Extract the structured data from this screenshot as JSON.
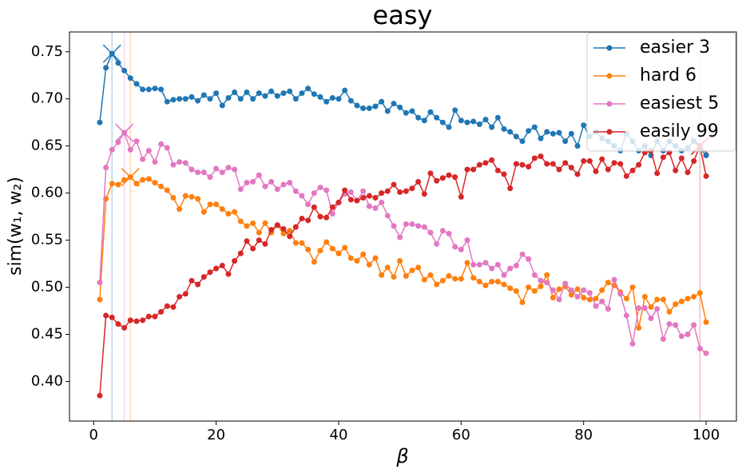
{
  "chart_data": {
    "type": "line",
    "title": "easy",
    "xlabel": "β",
    "ylabel": "sim(w₁, w₂)",
    "x": [
      1,
      2,
      3,
      4,
      5,
      6,
      7,
      8,
      9,
      10,
      11,
      12,
      13,
      14,
      15,
      16,
      17,
      18,
      19,
      20,
      21,
      22,
      23,
      24,
      25,
      26,
      27,
      28,
      29,
      30,
      31,
      32,
      33,
      34,
      35,
      36,
      37,
      38,
      39,
      40,
      41,
      42,
      43,
      44,
      45,
      46,
      47,
      48,
      49,
      50,
      51,
      52,
      53,
      54,
      55,
      56,
      57,
      58,
      59,
      60,
      61,
      62,
      63,
      64,
      65,
      66,
      67,
      68,
      69,
      70,
      71,
      72,
      73,
      74,
      75,
      76,
      77,
      78,
      79,
      80,
      81,
      82,
      83,
      84,
      85,
      86,
      87,
      88,
      89,
      90,
      91,
      92,
      93,
      94,
      95,
      96,
      97,
      98,
      99,
      100
    ],
    "series": [
      {
        "name": "easier 3",
        "color": "#1f77b4",
        "values": [
          0.675,
          0.733,
          0.748,
          0.738,
          0.73,
          0.722,
          0.716,
          0.71,
          0.71,
          0.711,
          0.71,
          0.697,
          0.699,
          0.7,
          0.7,
          0.702,
          0.698,
          0.704,
          0.7,
          0.706,
          0.693,
          0.701,
          0.707,
          0.7,
          0.707,
          0.7,
          0.706,
          0.703,
          0.708,
          0.703,
          0.706,
          0.708,
          0.7,
          0.706,
          0.711,
          0.705,
          0.702,
          0.697,
          0.701,
          0.7,
          0.709,
          0.698,
          0.693,
          0.69,
          0.69,
          0.692,
          0.697,
          0.687,
          0.695,
          0.691,
          0.685,
          0.687,
          0.68,
          0.677,
          0.686,
          0.68,
          0.675,
          0.67,
          0.688,
          0.677,
          0.675,
          0.676,
          0.673,
          0.678,
          0.67,
          0.68,
          0.668,
          0.665,
          0.66,
          0.655,
          0.666,
          0.67,
          0.658,
          0.665,
          0.663,
          0.664,
          0.655,
          0.663,
          0.65,
          0.672,
          0.66,
          0.665,
          0.658,
          0.655,
          0.65,
          0.645,
          0.663,
          0.655,
          0.645,
          0.65,
          0.64,
          0.655,
          0.645,
          0.655,
          0.65,
          0.645,
          0.648,
          0.655,
          0.648,
          0.64
        ]
      },
      {
        "name": "hard 6",
        "color": "#ff7f0e",
        "values": [
          0.487,
          0.594,
          0.61,
          0.609,
          0.614,
          0.617,
          0.61,
          0.614,
          0.615,
          0.611,
          0.607,
          0.603,
          0.595,
          0.583,
          0.597,
          0.596,
          0.594,
          0.58,
          0.588,
          0.588,
          0.583,
          0.578,
          0.58,
          0.57,
          0.565,
          0.568,
          0.558,
          0.568,
          0.558,
          0.566,
          0.557,
          0.56,
          0.547,
          0.547,
          0.54,
          0.527,
          0.539,
          0.548,
          0.541,
          0.536,
          0.542,
          0.531,
          0.528,
          0.535,
          0.524,
          0.531,
          0.513,
          0.521,
          0.511,
          0.528,
          0.512,
          0.518,
          0.521,
          0.508,
          0.513,
          0.503,
          0.507,
          0.512,
          0.509,
          0.509,
          0.526,
          0.51,
          0.506,
          0.502,
          0.506,
          0.506,
          0.503,
          0.499,
          0.496,
          0.484,
          0.5,
          0.496,
          0.501,
          0.513,
          0.489,
          0.498,
          0.501,
          0.492,
          0.498,
          0.489,
          0.487,
          0.488,
          0.497,
          0.505,
          0.502,
          0.495,
          0.488,
          0.5,
          0.457,
          0.49,
          0.479,
          0.487,
          0.487,
          0.474,
          0.482,
          0.485,
          0.488,
          0.49,
          0.494,
          0.463
        ]
      },
      {
        "name": "easiest 5",
        "color": "#e377c2",
        "values": [
          0.505,
          0.627,
          0.646,
          0.654,
          0.664,
          0.646,
          0.655,
          0.636,
          0.645,
          0.633,
          0.652,
          0.648,
          0.63,
          0.633,
          0.632,
          0.625,
          0.622,
          0.622,
          0.617,
          0.626,
          0.622,
          0.627,
          0.625,
          0.604,
          0.611,
          0.612,
          0.619,
          0.607,
          0.612,
          0.604,
          0.609,
          0.611,
          0.602,
          0.597,
          0.588,
          0.6,
          0.606,
          0.603,
          0.578,
          0.59,
          0.599,
          0.601,
          0.592,
          0.602,
          0.586,
          0.584,
          0.59,
          0.576,
          0.565,
          0.553,
          0.567,
          0.567,
          0.565,
          0.564,
          0.558,
          0.546,
          0.56,
          0.557,
          0.543,
          0.54,
          0.55,
          0.524,
          0.524,
          0.526,
          0.52,
          0.524,
          0.513,
          0.52,
          0.523,
          0.535,
          0.53,
          0.513,
          0.507,
          0.505,
          0.497,
          0.487,
          0.504,
          0.497,
          0.49,
          0.497,
          0.494,
          0.48,
          0.485,
          0.477,
          0.508,
          0.493,
          0.47,
          0.44,
          0.478,
          0.478,
          0.467,
          0.477,
          0.445,
          0.461,
          0.46,
          0.448,
          0.45,
          0.46,
          0.435,
          0.43
        ]
      },
      {
        "name": "easily 99",
        "color": "#d62728",
        "values": [
          0.385,
          0.47,
          0.468,
          0.461,
          0.457,
          0.465,
          0.464,
          0.465,
          0.469,
          0.469,
          0.474,
          0.48,
          0.479,
          0.49,
          0.493,
          0.507,
          0.503,
          0.511,
          0.516,
          0.52,
          0.523,
          0.514,
          0.528,
          0.536,
          0.549,
          0.541,
          0.55,
          0.546,
          0.561,
          0.566,
          0.562,
          0.554,
          0.564,
          0.573,
          0.571,
          0.585,
          0.575,
          0.574,
          0.585,
          0.59,
          0.603,
          0.593,
          0.592,
          0.595,
          0.597,
          0.595,
          0.6,
          0.602,
          0.609,
          0.601,
          0.602,
          0.605,
          0.612,
          0.599,
          0.621,
          0.613,
          0.616,
          0.619,
          0.617,
          0.596,
          0.625,
          0.625,
          0.63,
          0.632,
          0.635,
          0.624,
          0.62,
          0.605,
          0.631,
          0.63,
          0.628,
          0.637,
          0.639,
          0.631,
          0.631,
          0.625,
          0.632,
          0.627,
          0.62,
          0.634,
          0.634,
          0.623,
          0.636,
          0.625,
          0.632,
          0.631,
          0.618,
          0.624,
          0.63,
          0.643,
          0.645,
          0.621,
          0.638,
          0.643,
          0.624,
          0.637,
          0.622,
          0.634,
          0.65,
          0.618
        ]
      }
    ],
    "xlim": [
      -3.95,
      104.95
    ],
    "xticks": [
      0,
      20,
      40,
      60,
      80,
      100
    ],
    "ylim": [
      0.358,
      0.771
    ],
    "yticks": [
      {
        "value": 0.4,
        "label": "0.40"
      },
      0.45,
      {
        "value": 0.5,
        "label": "0.50"
      },
      0.55,
      {
        "value": 0.6,
        "label": "0.60"
      },
      0.65,
      {
        "value": 0.7,
        "label": "0.70"
      },
      0.75
    ],
    "legend": "upper right",
    "mark_max": true
  }
}
